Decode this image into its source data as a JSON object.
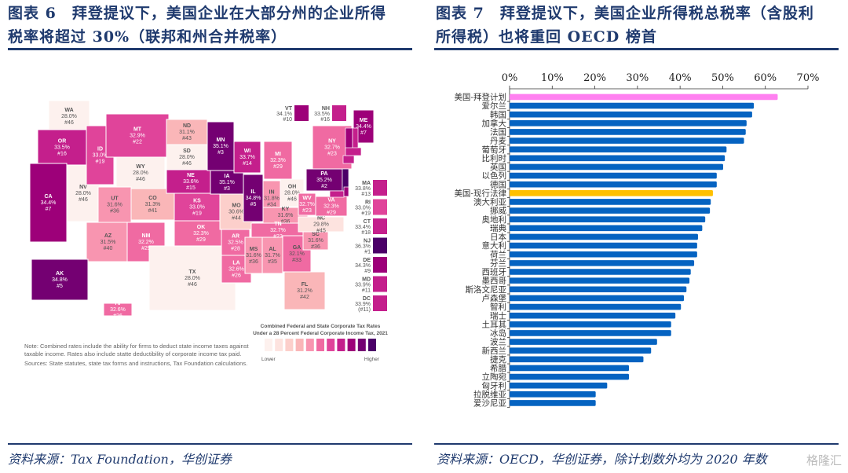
{
  "left": {
    "title_line1": "图表 6　拜登提议下，美国企业在大部分州的企业所得",
    "title_line2": "税率将超过 30%（联邦和州合并税率）",
    "source": "资料来源：Tax Foundation，华创证券",
    "map": {
      "legend_title1": "Combined Federal and State Corporate Tax Rates",
      "legend_title2": "Under a 28 Percent Federal Corporate Income Tax, 2021",
      "legend_low": "Lower",
      "legend_high": "Higher",
      "legend_colors": [
        "#fdf1ee",
        "#fde3df",
        "#fccfcb",
        "#fab6b8",
        "#f895b0",
        "#f06aa2",
        "#e0449a",
        "#c41f8c",
        "#9d0079",
        "#740072",
        "#4b0068"
      ],
      "note1": "Note: Combined rates include the ability for firms to deduct state income taxes against",
      "note2": "taxable income. Rates also include statte deductibility of corporate income tax paid.",
      "sources": "Sources: State statutes, state tax forms and instructions, Tax Foundation calculations.",
      "states": [
        {
          "abbr": "WA",
          "rate": "28.0%",
          "rank": "#46"
        },
        {
          "abbr": "OR",
          "rate": "33.5%",
          "rank": "#16"
        },
        {
          "abbr": "CA",
          "rate": "34.4%",
          "rank": "#7"
        },
        {
          "abbr": "NV",
          "rate": "28.0%",
          "rank": "#46"
        },
        {
          "abbr": "ID",
          "rate": "33.0%",
          "rank": "#19"
        },
        {
          "abbr": "MT",
          "rate": "32.9%",
          "rank": "#22"
        },
        {
          "abbr": "WY",
          "rate": "28.0%",
          "rank": "#46"
        },
        {
          "abbr": "UT",
          "rate": "31.6%",
          "rank": "#36"
        },
        {
          "abbr": "CO",
          "rate": "31.3%",
          "rank": "#41"
        },
        {
          "abbr": "AZ",
          "rate": "31.5%",
          "rank": "#40"
        },
        {
          "abbr": "NM",
          "rate": "32.2%",
          "rank": "#29"
        },
        {
          "abbr": "ND",
          "rate": "31.1%",
          "rank": "#43"
        },
        {
          "abbr": "SD",
          "rate": "28.0%",
          "rank": "#46"
        },
        {
          "abbr": "NE",
          "rate": "33.6%",
          "rank": "#15"
        },
        {
          "abbr": "KS",
          "rate": "33.0%",
          "rank": "#19"
        },
        {
          "abbr": "OK",
          "rate": "32.3%",
          "rank": "#29"
        },
        {
          "abbr": "TX",
          "rate": "28.0%",
          "rank": "#46"
        },
        {
          "abbr": "MN",
          "rate": "35.1%",
          "rank": "#3"
        },
        {
          "abbr": "IA",
          "rate": "35.1%",
          "rank": "#3"
        },
        {
          "abbr": "MO",
          "rate": "30.6%",
          "rank": "#44"
        },
        {
          "abbr": "AR",
          "rate": "32.5%",
          "rank": "#28"
        },
        {
          "abbr": "LA",
          "rate": "32.6%",
          "rank": "#26"
        },
        {
          "abbr": "WI",
          "rate": "33.7%",
          "rank": "#14"
        },
        {
          "abbr": "IL",
          "rate": "34.8%",
          "rank": "#5"
        },
        {
          "abbr": "MI",
          "rate": "32.3%",
          "rank": "#29"
        },
        {
          "abbr": "IN",
          "rate": "31.8%",
          "rank": "#34"
        },
        {
          "abbr": "OH",
          "rate": "28.0%",
          "rank": "#46"
        },
        {
          "abbr": "KY",
          "rate": "31.6%",
          "rank": "#36"
        },
        {
          "abbr": "TN",
          "rate": "32.7%",
          "rank": "#23"
        },
        {
          "abbr": "MS",
          "rate": "31.6%",
          "rank": "#36"
        },
        {
          "abbr": "AL",
          "rate": "31.7%",
          "rank": "#35"
        },
        {
          "abbr": "GA",
          "rate": "32.1%",
          "rank": "#33"
        },
        {
          "abbr": "FL",
          "rate": "31.2%",
          "rank": "#42"
        },
        {
          "abbr": "SC",
          "rate": "31.6%",
          "rank": "#36"
        },
        {
          "abbr": "NC",
          "rate": "29.8%",
          "rank": "#45"
        },
        {
          "abbr": "WV",
          "rate": "32.7%",
          "rank": "#23"
        },
        {
          "abbr": "VA",
          "rate": "32.3%",
          "rank": "#29"
        },
        {
          "abbr": "PA",
          "rate": "35.2%",
          "rank": "#2"
        },
        {
          "abbr": "NY",
          "rate": "32.7%",
          "rank": "#23"
        },
        {
          "abbr": "ME",
          "rate": "34.4%",
          "rank": "#7"
        },
        {
          "abbr": "AK",
          "rate": "34.8%",
          "rank": "#5"
        },
        {
          "abbr": "HI",
          "rate": "32.6%",
          "rank": "#26"
        }
      ],
      "callouts_top": [
        {
          "abbr": "VT",
          "rate": "34.1%",
          "rank": "#10"
        },
        {
          "abbr": "NH",
          "rate": "33.5%",
          "rank": "#16"
        }
      ],
      "callouts_right": [
        {
          "abbr": "MA",
          "rate": "33.8%",
          "rank": "#13"
        },
        {
          "abbr": "RI",
          "rate": "33.0%",
          "rank": "#19"
        },
        {
          "abbr": "CT",
          "rate": "33.4%",
          "rank": "#18"
        },
        {
          "abbr": "NJ",
          "rate": "36.3%",
          "rank": "#1"
        },
        {
          "abbr": "DE",
          "rate": "34.3%",
          "rank": "#9"
        },
        {
          "abbr": "MD",
          "rate": "33.9%",
          "rank": "#11"
        },
        {
          "abbr": "DC",
          "rate": "33.9%",
          "rank": "(#11)"
        }
      ]
    }
  },
  "right": {
    "title_line1": "图表 7　拜登提议下，美国企业所得税总税率（含股利",
    "title_line2": "所得税）也将重回 OECD 榜首",
    "source": "资料来源：OECD，华创证券，除计划数外均为 2020 年数",
    "watermark": "格隆汇"
  },
  "chart_data": {
    "type": "bar",
    "orientation": "horizontal",
    "xlim": [
      0,
      70
    ],
    "xticks": [
      "0%",
      "10%",
      "20%",
      "30%",
      "40%",
      "50%",
      "60%",
      "70%"
    ],
    "xaxis_position": "top",
    "grid": false,
    "colors": {
      "default": "#0563c1",
      "biden": "#ff80f0",
      "current": "#ffc000"
    },
    "categories": [
      "美国-拜登计划",
      "爱尔兰",
      "韩国",
      "加拿大",
      "法国",
      "丹麦",
      "葡萄牙",
      "比利时",
      "英国",
      "以色列",
      "德国",
      "美国-现行法律",
      "澳大利亚",
      "挪威",
      "奥地利",
      "瑞典",
      "日本",
      "意大利",
      "荷兰",
      "芬兰",
      "西班牙",
      "墨西哥",
      "斯洛文尼亚",
      "卢森堡",
      "智利",
      "瑞士",
      "土耳其",
      "冰岛",
      "波兰",
      "新西兰",
      "捷克",
      "希腊",
      "立陶宛",
      "匈牙利",
      "拉脱维亚",
      "爱沙尼亚"
    ],
    "values": [
      62.9,
      57.3,
      56.9,
      55.6,
      55.4,
      55.0,
      50.9,
      50.5,
      50.1,
      48.6,
      48.6,
      47.7,
      47.2,
      47.0,
      45.9,
      45.2,
      44.2,
      44.0,
      44.0,
      43.3,
      42.5,
      42.2,
      41.5,
      40.9,
      40.2,
      38.9,
      37.9,
      37.9,
      34.6,
      33.2,
      31.4,
      28.0,
      28.0,
      22.9,
      20.2,
      20.2
    ]
  }
}
